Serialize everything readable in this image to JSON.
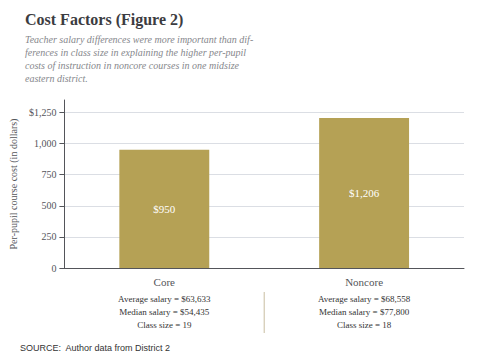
{
  "chart_data": {
    "type": "bar",
    "title": "Cost Factors (Figure 2)",
    "subtitle": "Teacher salary differences were more important than dif-\nferences in class size in explaining the higher per-pupil\ncosts of instruction in noncore courses in one midsize\neastern district.",
    "categories": [
      "Core",
      "Noncore"
    ],
    "values": [
      950,
      1206
    ],
    "value_labels": [
      "$950",
      "$1,206"
    ],
    "data_labels": true,
    "color": "#b5a155",
    "ylabel": "Per-pupil course cost (in dollars)",
    "ylim": [
      0,
      1350
    ],
    "yticks": [
      0,
      250,
      500,
      750,
      {
        "value": 1000,
        "label": "1,000"
      },
      {
        "value": 1250,
        "label": "$1,250"
      }
    ],
    "grid": true,
    "annotations": [
      [
        "Average salary = $63,633",
        "Average salary = $68,558"
      ],
      [
        "Median salary = $54,435",
        "Median salary = $77,800"
      ],
      [
        "Class size = 19",
        "Class size = 18"
      ]
    ],
    "source": "SOURCE:  Author data from District 2"
  }
}
